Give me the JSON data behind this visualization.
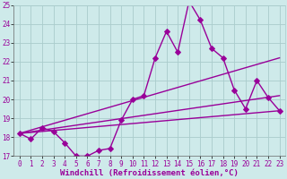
{
  "xlabel": "Windchill (Refroidissement éolien,°C)",
  "xlim": [
    -0.5,
    23.5
  ],
  "ylim": [
    17,
    25
  ],
  "xticks": [
    0,
    1,
    2,
    3,
    4,
    5,
    6,
    7,
    8,
    9,
    10,
    11,
    12,
    13,
    14,
    15,
    16,
    17,
    18,
    19,
    20,
    21,
    22,
    23
  ],
  "yticks": [
    17,
    18,
    19,
    20,
    21,
    22,
    23,
    24,
    25
  ],
  "bg_color": "#ceeaea",
  "grid_color": "#aacccc",
  "line_color": "#990099",
  "series": {
    "temp": {
      "x": [
        0,
        1,
        2,
        3,
        4,
        5,
        6,
        7,
        8,
        9,
        10,
        11,
        12,
        13,
        14,
        15,
        16,
        17,
        18,
        19,
        20,
        21,
        22,
        23
      ],
      "y": [
        18.2,
        17.9,
        18.5,
        18.3,
        17.7,
        17.0,
        17.0,
        17.3,
        17.4,
        18.9,
        20.0,
        20.2,
        22.2,
        23.6,
        22.5,
        25.2,
        24.2,
        22.7,
        22.2,
        20.5,
        19.5,
        21.0,
        20.1,
        19.4
      ]
    },
    "line1": {
      "x": [
        0,
        23
      ],
      "y": [
        18.2,
        19.4
      ]
    },
    "line2": {
      "x": [
        0,
        23
      ],
      "y": [
        18.2,
        22.2
      ]
    },
    "line3": {
      "x": [
        0,
        23
      ],
      "y": [
        18.2,
        20.2
      ]
    }
  },
  "marker": "D",
  "markersize": 3,
  "linewidth": 1.0,
  "tick_fontsize": 5.5,
  "label_fontsize": 6.5
}
